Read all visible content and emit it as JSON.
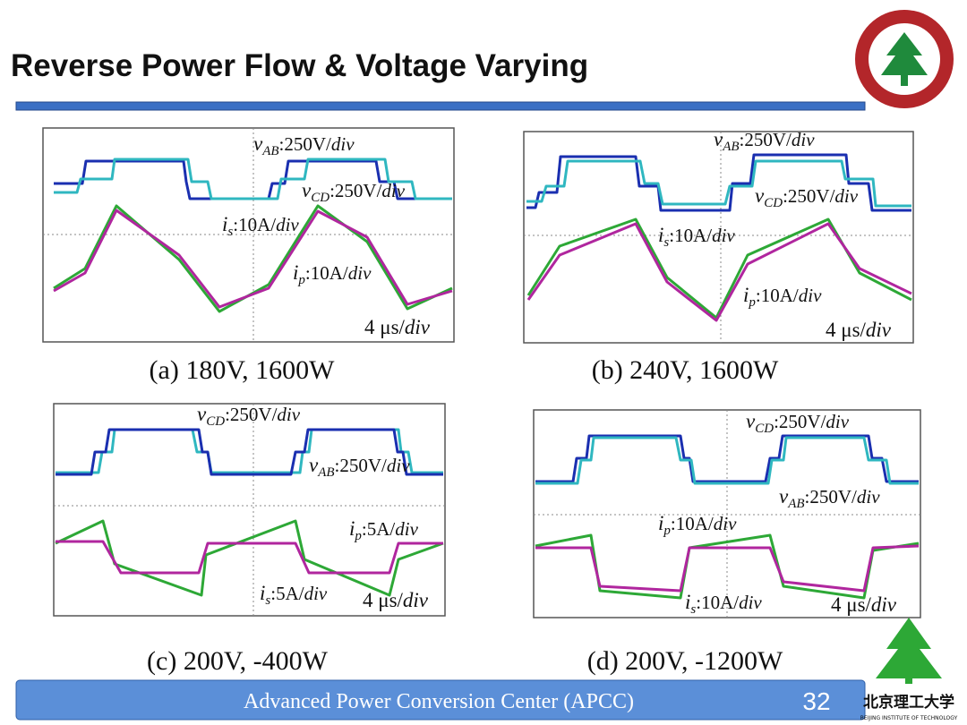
{
  "header": {
    "title": "Reverse Power Flow  & Voltage Varying"
  },
  "panels": [
    {
      "caption": "(a) 180V, 1600W",
      "labels": [
        {
          "var": "v",
          "sub": "AB",
          "scale": ":250V/",
          "unit": "div"
        },
        {
          "var": "v",
          "sub": "CD",
          "scale": ":250V/",
          "unit": "div"
        },
        {
          "var": "i",
          "sub": "s",
          "scale": ":10A/",
          "unit": "div"
        },
        {
          "var": "i",
          "sub": "p",
          "scale": ":10A/",
          "unit": "div"
        }
      ],
      "time": {
        "scale": "4 μs/",
        "unit": "div"
      }
    },
    {
      "caption": "(b) 240V, 1600W",
      "labels": [
        {
          "var": "v",
          "sub": "AB",
          "scale": ":250V/",
          "unit": "div"
        },
        {
          "var": "v",
          "sub": "CD",
          "scale": ":250V/",
          "unit": "div"
        },
        {
          "var": "i",
          "sub": "s",
          "scale": ":10A/",
          "unit": "div"
        },
        {
          "var": "i",
          "sub": "p",
          "scale": ":10A/",
          "unit": "div"
        }
      ],
      "time": {
        "scale": "4 μs/",
        "unit": "div"
      }
    },
    {
      "caption": "(c) 200V, -400W",
      "labels": [
        {
          "var": "v",
          "sub": "CD",
          "scale": ":250V/",
          "unit": "div"
        },
        {
          "var": "v",
          "sub": "AB",
          "scale": ":250V/",
          "unit": "div"
        },
        {
          "var": "i",
          "sub": "p",
          "scale": ":5A/",
          "unit": "div"
        },
        {
          "var": "i",
          "sub": "s",
          "scale": ":5A/",
          "unit": "div"
        }
      ],
      "time": {
        "scale": "4 μs/",
        "unit": "div"
      }
    },
    {
      "caption": "(d) 200V, -1200W",
      "labels": [
        {
          "var": "v",
          "sub": "CD",
          "scale": ":250V/",
          "unit": "div"
        },
        {
          "var": "v",
          "sub": "AB",
          "scale": ":250V/",
          "unit": "div"
        },
        {
          "var": "i",
          "sub": "p",
          "scale": ":10A/",
          "unit": "div"
        },
        {
          "var": "i",
          "sub": "s",
          "scale": ":10A/",
          "unit": "div"
        }
      ],
      "time": {
        "scale": "4 μs/",
        "unit": "div"
      }
    }
  ],
  "footer": {
    "text": "Advanced  Power  Conversion  Center (APCC)",
    "page": "32"
  },
  "logo": {
    "name": "北京理工大学",
    "subtitle": "BEIJING INSTITUTE OF TECHNOLOGY"
  }
}
